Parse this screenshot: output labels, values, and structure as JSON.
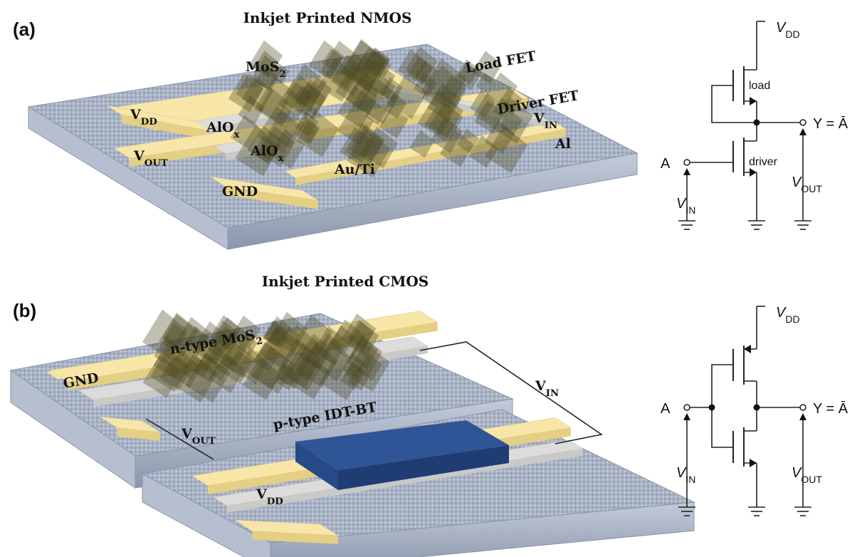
{
  "panel_a": {
    "label": "(a)",
    "title": "Inkjet Printed NMOS",
    "device_labels": [
      {
        "text": "MoS",
        "sub": "2"
      },
      {
        "text": "Load FET"
      },
      {
        "text": "Driver FET"
      },
      {
        "text": "V",
        "sub": "DD"
      },
      {
        "text": "AlO",
        "sub": "x"
      },
      {
        "text": "V",
        "sub": "IN"
      },
      {
        "text": "V",
        "sub": "OUT"
      },
      {
        "text": "AlO",
        "sub": "x"
      },
      {
        "text": "Al"
      },
      {
        "text": "GND"
      },
      {
        "text": "Au/Ti"
      }
    ],
    "circuit_labels": [
      {
        "text": "V",
        "sub": "DD"
      },
      {
        "text": "load"
      },
      {
        "text": "Y = Ā"
      },
      {
        "text": "A"
      },
      {
        "text": "driver"
      },
      {
        "text": "V",
        "sub": "IN"
      },
      {
        "text": "V",
        "sub": "OUT"
      }
    ]
  },
  "panel_b": {
    "label": "(b)",
    "title": "Inkjet Printed CMOS",
    "device_labels": [
      {
        "text": "GND"
      },
      {
        "text": "n-type MoS",
        "sub": "2"
      },
      {
        "text": "V",
        "sub": "IN"
      },
      {
        "text": "V",
        "sub": "OUT"
      },
      {
        "text": "p-type IDT-BT"
      },
      {
        "text": "V",
        "sub": "DD"
      }
    ],
    "circuit_labels": [
      {
        "text": "V",
        "sub": "DD"
      },
      {
        "text": "A"
      },
      {
        "text": "Y = Ā"
      },
      {
        "text": "V",
        "sub": "IN"
      },
      {
        "text": "V",
        "sub": "OUT"
      }
    ]
  }
}
